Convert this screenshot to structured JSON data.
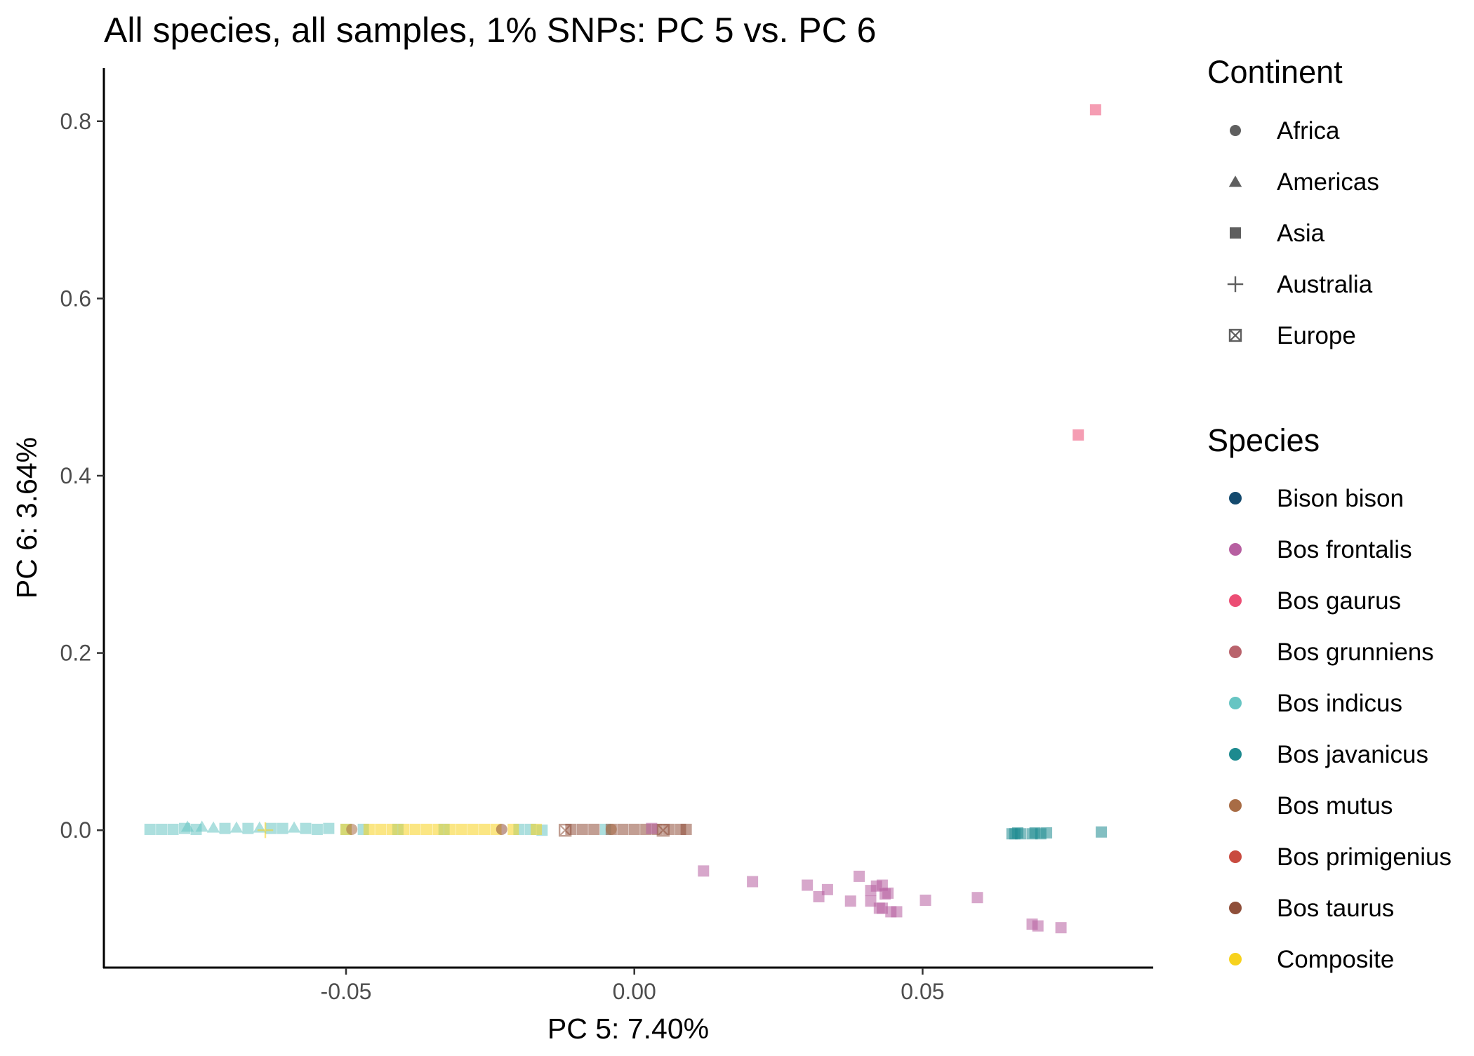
{
  "chart_data": {
    "type": "scatter",
    "title": "All species, all samples, 1% SNPs: PC 5 vs. PC 6",
    "xlabel": "PC 5: 7.40%",
    "ylabel": "PC 6: 3.64%",
    "xlim": [
      -0.092,
      0.09
    ],
    "ylim": [
      -0.155,
      0.86
    ],
    "xticks": [
      -0.05,
      0.0,
      0.05
    ],
    "xtick_labels": [
      "-0.05",
      "0.00",
      "0.05"
    ],
    "yticks": [
      0.0,
      0.2,
      0.4,
      0.6,
      0.8
    ],
    "ytick_labels": [
      "0.0",
      "0.2",
      "0.4",
      "0.6",
      "0.8"
    ],
    "grid": false,
    "legend_position": "right",
    "shape_legend": {
      "title": "Continent",
      "items": [
        {
          "label": "Africa",
          "shape": "circle"
        },
        {
          "label": "Americas",
          "shape": "triangle"
        },
        {
          "label": "Asia",
          "shape": "square"
        },
        {
          "label": "Australia",
          "shape": "plus"
        },
        {
          "label": "Europe",
          "shape": "square-x"
        }
      ]
    },
    "color_legend": {
      "title": "Species",
      "items": [
        {
          "label": "Bison bison",
          "color": "#144a6e"
        },
        {
          "label": "Bos frontalis",
          "color": "#b75fa1"
        },
        {
          "label": "Bos gaurus",
          "color": "#ec4d74"
        },
        {
          "label": "Bos grunniens",
          "color": "#b9636c"
        },
        {
          "label": "Bos indicus",
          "color": "#67c5c3"
        },
        {
          "label": "Bos javanicus",
          "color": "#1d8a8f"
        },
        {
          "label": "Bos mutus",
          "color": "#a86c45"
        },
        {
          "label": "Bos primigenius",
          "color": "#c94b40"
        },
        {
          "label": "Bos taurus",
          "color": "#8f4f3a"
        },
        {
          "label": "Composite",
          "color": "#f7d21d"
        }
      ]
    },
    "series": [
      {
        "name": "Bos indicus",
        "color": "#67c5c3",
        "points": [
          {
            "x": -0.084,
            "y": 0.001,
            "shape": "square"
          },
          {
            "x": -0.082,
            "y": 0.001,
            "shape": "square"
          },
          {
            "x": -0.08,
            "y": 0.001,
            "shape": "square"
          },
          {
            "x": -0.078,
            "y": 0.002,
            "shape": "square"
          },
          {
            "x": -0.076,
            "y": 0.001,
            "shape": "square"
          },
          {
            "x": -0.0775,
            "y": 0.004,
            "shape": "triangle"
          },
          {
            "x": -0.075,
            "y": 0.004,
            "shape": "triangle"
          },
          {
            "x": -0.073,
            "y": 0.003,
            "shape": "triangle"
          },
          {
            "x": -0.071,
            "y": 0.002,
            "shape": "square"
          },
          {
            "x": -0.069,
            "y": 0.003,
            "shape": "triangle"
          },
          {
            "x": -0.067,
            "y": 0.002,
            "shape": "square"
          },
          {
            "x": -0.065,
            "y": 0.003,
            "shape": "triangle"
          },
          {
            "x": -0.063,
            "y": 0.002,
            "shape": "square"
          },
          {
            "x": -0.061,
            "y": 0.002,
            "shape": "square"
          },
          {
            "x": -0.059,
            "y": 0.003,
            "shape": "triangle"
          },
          {
            "x": -0.057,
            "y": 0.002,
            "shape": "square"
          },
          {
            "x": -0.055,
            "y": 0.001,
            "shape": "square"
          },
          {
            "x": -0.053,
            "y": 0.002,
            "shape": "square"
          },
          {
            "x": -0.05,
            "y": 0.001,
            "shape": "square"
          },
          {
            "x": -0.047,
            "y": 0.001,
            "shape": "square"
          },
          {
            "x": -0.041,
            "y": 0.001,
            "shape": "square"
          },
          {
            "x": -0.033,
            "y": 0.001,
            "shape": "square"
          },
          {
            "x": -0.02,
            "y": 0.001,
            "shape": "square"
          },
          {
            "x": -0.018,
            "y": 0.001,
            "shape": "square"
          },
          {
            "x": -0.016,
            "y": 0.0,
            "shape": "square"
          },
          {
            "x": -0.005,
            "y": 0.001,
            "shape": "square"
          }
        ]
      },
      {
        "name": "Composite",
        "color": "#f7d21d",
        "points": [
          {
            "x": -0.064,
            "y": 0.0,
            "shape": "plus"
          },
          {
            "x": -0.05,
            "y": 0.001,
            "shape": "square"
          },
          {
            "x": -0.046,
            "y": 0.001,
            "shape": "square"
          },
          {
            "x": -0.044,
            "y": 0.001,
            "shape": "square"
          },
          {
            "x": -0.042,
            "y": 0.001,
            "shape": "square"
          },
          {
            "x": -0.04,
            "y": 0.001,
            "shape": "square"
          },
          {
            "x": -0.038,
            "y": 0.001,
            "shape": "square"
          },
          {
            "x": -0.036,
            "y": 0.001,
            "shape": "square"
          },
          {
            "x": -0.034,
            "y": 0.001,
            "shape": "square"
          },
          {
            "x": -0.032,
            "y": 0.001,
            "shape": "square"
          },
          {
            "x": -0.03,
            "y": 0.001,
            "shape": "square"
          },
          {
            "x": -0.028,
            "y": 0.001,
            "shape": "square"
          },
          {
            "x": -0.026,
            "y": 0.001,
            "shape": "square"
          },
          {
            "x": -0.024,
            "y": 0.001,
            "shape": "square"
          },
          {
            "x": -0.021,
            "y": 0.001,
            "shape": "square"
          },
          {
            "x": -0.017,
            "y": 0.001,
            "shape": "square"
          }
        ]
      },
      {
        "name": "Bos taurus",
        "color": "#8f4f3a",
        "points": [
          {
            "x": -0.023,
            "y": 0.001,
            "shape": "circle"
          },
          {
            "x": -0.012,
            "y": 0.0,
            "shape": "square-x"
          },
          {
            "x": -0.011,
            "y": 0.001,
            "shape": "square"
          },
          {
            "x": -0.009,
            "y": 0.001,
            "shape": "square"
          },
          {
            "x": -0.007,
            "y": 0.001,
            "shape": "square"
          },
          {
            "x": -0.004,
            "y": 0.001,
            "shape": "square"
          },
          {
            "x": -0.002,
            "y": 0.001,
            "shape": "square"
          },
          {
            "x": 0.0,
            "y": 0.001,
            "shape": "square"
          },
          {
            "x": 0.002,
            "y": 0.001,
            "shape": "square"
          },
          {
            "x": 0.004,
            "y": 0.001,
            "shape": "square"
          },
          {
            "x": 0.005,
            "y": 0.0,
            "shape": "square-x"
          },
          {
            "x": 0.006,
            "y": 0.001,
            "shape": "square"
          },
          {
            "x": 0.008,
            "y": 0.001,
            "shape": "square"
          },
          {
            "x": 0.009,
            "y": 0.001,
            "shape": "square"
          }
        ]
      },
      {
        "name": "Bos mutus",
        "color": "#a86c45",
        "points": [
          {
            "x": -0.049,
            "y": 0.001,
            "shape": "circle"
          },
          {
            "x": -0.004,
            "y": 0.001,
            "shape": "circle"
          }
        ]
      },
      {
        "name": "Bos frontalis",
        "color": "#b75fa1",
        "points": [
          {
            "x": 0.003,
            "y": 0.002,
            "shape": "square"
          },
          {
            "x": 0.012,
            "y": -0.046,
            "shape": "square"
          },
          {
            "x": 0.0205,
            "y": -0.058,
            "shape": "square"
          },
          {
            "x": 0.03,
            "y": -0.062,
            "shape": "square"
          },
          {
            "x": 0.032,
            "y": -0.075,
            "shape": "square"
          },
          {
            "x": 0.0335,
            "y": -0.067,
            "shape": "square"
          },
          {
            "x": 0.0375,
            "y": -0.08,
            "shape": "square"
          },
          {
            "x": 0.039,
            "y": -0.052,
            "shape": "square"
          },
          {
            "x": 0.041,
            "y": -0.068,
            "shape": "square"
          },
          {
            "x": 0.041,
            "y": -0.08,
            "shape": "square"
          },
          {
            "x": 0.042,
            "y": -0.063,
            "shape": "square"
          },
          {
            "x": 0.0425,
            "y": -0.088,
            "shape": "square"
          },
          {
            "x": 0.043,
            "y": -0.062,
            "shape": "square"
          },
          {
            "x": 0.043,
            "y": -0.088,
            "shape": "square"
          },
          {
            "x": 0.0435,
            "y": -0.072,
            "shape": "square"
          },
          {
            "x": 0.044,
            "y": -0.071,
            "shape": "square"
          },
          {
            "x": 0.0445,
            "y": -0.092,
            "shape": "square"
          },
          {
            "x": 0.0455,
            "y": -0.092,
            "shape": "square"
          },
          {
            "x": 0.0505,
            "y": -0.079,
            "shape": "square"
          },
          {
            "x": 0.0595,
            "y": -0.076,
            "shape": "square"
          },
          {
            "x": 0.069,
            "y": -0.106,
            "shape": "square"
          },
          {
            "x": 0.07,
            "y": -0.108,
            "shape": "square"
          },
          {
            "x": 0.074,
            "y": -0.11,
            "shape": "square"
          }
        ]
      },
      {
        "name": "Bos javanicus",
        "color": "#1d8a8f",
        "points": [
          {
            "x": 0.0655,
            "y": -0.004,
            "shape": "square"
          },
          {
            "x": 0.066,
            "y": -0.004,
            "shape": "square"
          },
          {
            "x": 0.0665,
            "y": -0.003,
            "shape": "square"
          },
          {
            "x": 0.067,
            "y": -0.004,
            "shape": "square"
          },
          {
            "x": 0.069,
            "y": -0.004,
            "shape": "square"
          },
          {
            "x": 0.0695,
            "y": -0.003,
            "shape": "square"
          },
          {
            "x": 0.0705,
            "y": -0.004,
            "shape": "square"
          },
          {
            "x": 0.0715,
            "y": -0.003,
            "shape": "square"
          },
          {
            "x": 0.081,
            "y": -0.002,
            "shape": "square"
          }
        ]
      },
      {
        "name": "Bos gaurus",
        "color": "#ec4d74",
        "points": [
          {
            "x": 0.08,
            "y": 0.813,
            "shape": "square"
          },
          {
            "x": 0.077,
            "y": 0.446,
            "shape": "square"
          }
        ]
      }
    ]
  }
}
